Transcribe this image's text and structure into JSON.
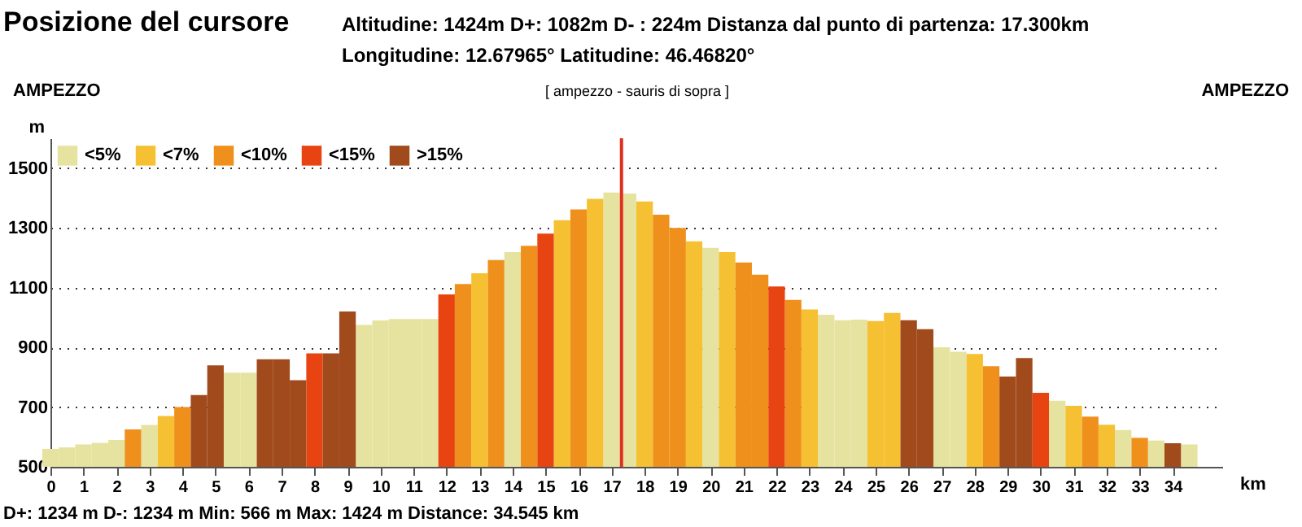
{
  "chart_data": {
    "type": "bar",
    "title": "Posizione del cursore",
    "annotations": [
      "Altitudine: 1424m    D+: 1082m    D- : 224m    Distanza dal punto di partenza: 17.300km",
      "Longitudine: 12.67965°    Latitudine: 46.46820°",
      "AMPEZZO",
      "[ ampezzo - sauris di sopra ]",
      "AMPEZZO",
      "D+: 1234 m   D-: 1234 m   Min: 566 m    Max: 1424 m    Distance: 34.545 km"
    ],
    "xlabel": "km",
    "ylabel": "m",
    "x": [
      0,
      0.5,
      1,
      1.5,
      2,
      2.5,
      3,
      3.5,
      4,
      4.5,
      5,
      5.5,
      6,
      6.5,
      7,
      7.5,
      8,
      8.5,
      9,
      9.5,
      10,
      10.5,
      11,
      11.5,
      12,
      12.5,
      13,
      13.5,
      14,
      14.5,
      15,
      15.5,
      16,
      16.5,
      17,
      17.5,
      18,
      18.5,
      19,
      19.5,
      20,
      20.5,
      21,
      21.5,
      22,
      22.5,
      23,
      23.5,
      24,
      24.5,
      25,
      25.5,
      26,
      26.5,
      27,
      27.5,
      28,
      28.5,
      29,
      29.5,
      30,
      30.5,
      31,
      31.5,
      32,
      32.5,
      33,
      33.5,
      34,
      34.5
    ],
    "series": [
      {
        "name": "<5%",
        "color": "#e6e3a0",
        "values": [
          560,
          565,
          575,
          580,
          590,
          null,
          640,
          null,
          null,
          null,
          null,
          815,
          815,
          null,
          null,
          null,
          null,
          null,
          null,
          975,
          990,
          995,
          995,
          995,
          null,
          null,
          null,
          null,
          1219,
          null,
          null,
          null,
          null,
          null,
          1418,
          1415,
          null,
          null,
          null,
          null,
          1233,
          null,
          null,
          null,
          null,
          null,
          null,
          1009,
          991,
          993,
          null,
          null,
          null,
          null,
          900,
          885,
          null,
          null,
          null,
          null,
          null,
          721,
          null,
          null,
          null,
          623,
          null,
          588,
          null,
          575
        ]
      },
      {
        "name": "<7%",
        "color": "#f5c032",
        "values": [
          null,
          null,
          null,
          null,
          null,
          null,
          null,
          670,
          null,
          null,
          null,
          null,
          null,
          null,
          null,
          null,
          null,
          null,
          null,
          null,
          null,
          null,
          null,
          null,
          null,
          null,
          1148,
          null,
          null,
          null,
          null,
          1326,
          null,
          1397,
          null,
          null,
          1388,
          null,
          null,
          1255,
          null,
          1219,
          null,
          null,
          null,
          null,
          1027,
          null,
          null,
          null,
          988,
          1015,
          null,
          null,
          null,
          null,
          878,
          null,
          null,
          null,
          null,
          null,
          704,
          null,
          641,
          null,
          null,
          null,
          null,
          null
        ]
      },
      {
        "name": "<10%",
        "color": "#f0901c",
        "values": [
          null,
          null,
          null,
          null,
          null,
          625,
          null,
          null,
          700,
          null,
          null,
          null,
          null,
          null,
          null,
          null,
          null,
          null,
          null,
          null,
          null,
          null,
          null,
          null,
          null,
          1112,
          null,
          1192,
          null,
          1240,
          null,
          null,
          1362,
          null,
          null,
          null,
          null,
          1344,
          1300,
          null,
          null,
          null,
          1184,
          1143,
          null,
          1059,
          null,
          null,
          null,
          null,
          null,
          null,
          null,
          null,
          null,
          null,
          null,
          837,
          null,
          null,
          null,
          null,
          null,
          668,
          null,
          null,
          597,
          null,
          null,
          null
        ]
      },
      {
        "name": "<15%",
        "color": "#e84412",
        "values": [
          null,
          null,
          null,
          null,
          null,
          null,
          null,
          null,
          null,
          null,
          null,
          null,
          null,
          null,
          null,
          null,
          880,
          null,
          null,
          null,
          null,
          null,
          null,
          null,
          1077,
          null,
          null,
          null,
          null,
          null,
          1281,
          null,
          null,
          null,
          null,
          null,
          null,
          null,
          null,
          null,
          null,
          null,
          null,
          null,
          1104,
          null,
          null,
          null,
          null,
          null,
          null,
          null,
          null,
          null,
          null,
          null,
          null,
          null,
          null,
          null,
          748,
          null,
          null,
          null,
          null,
          null,
          null,
          null,
          null,
          null
        ]
      },
      {
        "name": ">15%",
        "color": "#a14a1c",
        "values": [
          null,
          null,
          null,
          null,
          null,
          null,
          null,
          null,
          null,
          740,
          840,
          null,
          null,
          860,
          860,
          790,
          null,
          880,
          1020,
          null,
          null,
          null,
          null,
          null,
          null,
          null,
          null,
          null,
          null,
          null,
          null,
          null,
          null,
          null,
          null,
          null,
          null,
          null,
          null,
          null,
          null,
          null,
          null,
          null,
          null,
          null,
          null,
          null,
          null,
          null,
          null,
          null,
          991,
          961,
          null,
          null,
          null,
          null,
          802,
          864,
          null,
          null,
          null,
          null,
          null,
          null,
          null,
          null,
          579,
          null
        ]
      }
    ],
    "xlim": [
      0,
      35.5
    ],
    "xticks": [
      0,
      1,
      2,
      3,
      4,
      5,
      6,
      7,
      8,
      9,
      10,
      11,
      12,
      13,
      14,
      15,
      16,
      17,
      18,
      19,
      20,
      21,
      22,
      23,
      24,
      25,
      26,
      27,
      28,
      29,
      30,
      31,
      32,
      33,
      34
    ],
    "ylim": [
      500,
      1600
    ],
    "yticks": [
      500,
      700,
      900,
      1100,
      1300,
      1500
    ],
    "grid": "y",
    "legend": "top left",
    "ref_lines": [
      {
        "axis": "x",
        "value": 17.3,
        "color": "#e03020"
      }
    ]
  }
}
